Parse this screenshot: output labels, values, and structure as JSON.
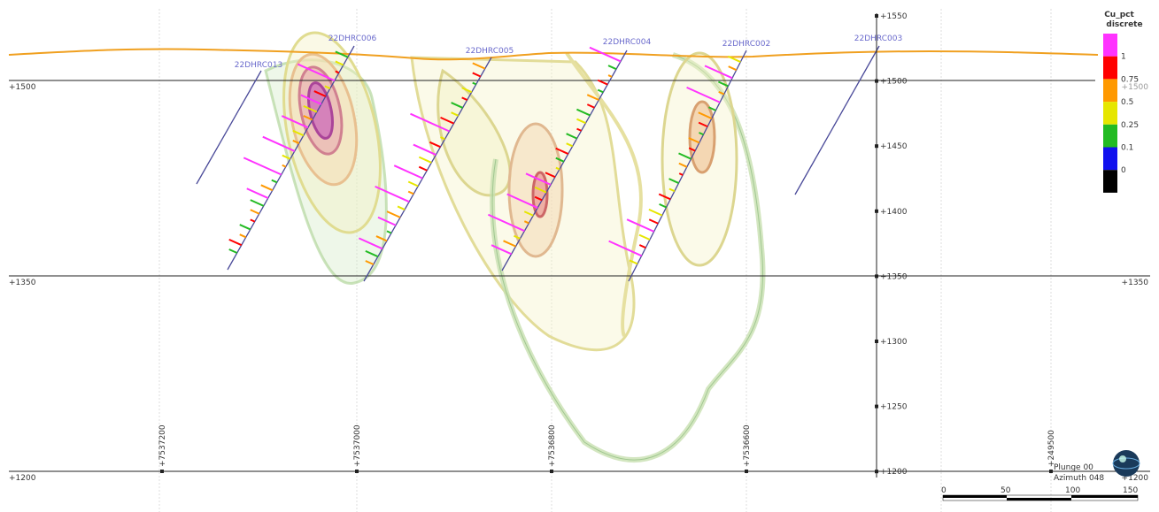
{
  "legend": {
    "title": "Cu_pct",
    "subtitle": "discrete",
    "colors": [
      "#ff33ff",
      "#ff0000",
      "#ff9900",
      "#e6e600",
      "#22bb22",
      "#1111ee",
      "#000000"
    ],
    "labels": [
      "1",
      "0.75",
      "0.5",
      "0.25",
      "0.1",
      "0"
    ]
  },
  "drillholes": [
    "22DHRC013",
    "22DHRC006",
    "22DHRC005",
    "22DHRC004",
    "22DHRC002",
    "22DHRC003"
  ],
  "elevation_axis": [
    "+1550",
    "+1500",
    "+1450",
    "+1400",
    "+1350",
    "+1300",
    "+1250",
    "+1200"
  ],
  "left_labels": [
    "+1500",
    "+1350",
    "+1200"
  ],
  "right_labels": [
    "+1500",
    "+1350",
    "+1200"
  ],
  "northings": [
    "+7537200",
    "+7537000",
    "+7536800",
    "+7536600"
  ],
  "easting": "+249500",
  "orientation": {
    "plunge": "Plunge 00",
    "azimuth": "Azimuth 048"
  },
  "scale_bar": [
    "0",
    "50",
    "100",
    "150"
  ]
}
